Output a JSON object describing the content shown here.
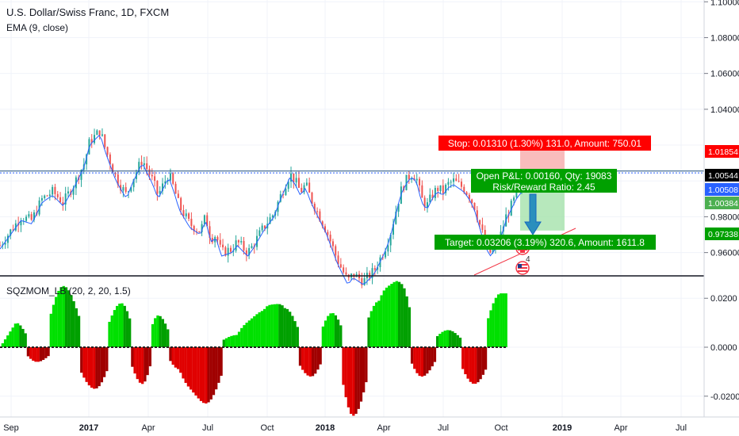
{
  "header": {
    "symbol_title": "U.S. Dollar/Swiss Franc, 1D, FXCM",
    "ema_label": "EMA (9, close)"
  },
  "position_tool": {
    "stop_label": "Stop: 0.01310 (1.30%) 131.0, Amount: 750.01",
    "open_pnl_label": "Open P&L: 0.00160, Qty: 19083",
    "risk_reward_label": "Risk/Reward Ratio: 2.45",
    "target_label": "Target: 0.03206 (3.19%) 320.6, Amount: 1611.8"
  },
  "markers": {
    "flag_label": "4",
    "flag_label_2": "5"
  },
  "colors": {
    "up": "#26a69a",
    "down": "#ef5350",
    "ema": "#2962ff",
    "stop_bg": "#ff0000",
    "target_bg": "#00a000",
    "mom_up": "#00e000",
    "mom_down": "#e00000"
  },
  "chart_data": [
    {
      "type": "candlestick",
      "title": "U.S. Dollar/Swiss Franc, 1D, FXCM",
      "x_ticks": [
        "Sep",
        "2017",
        "Apr",
        "Jul",
        "Oct",
        "2018",
        "Apr",
        "Jul",
        "Oct",
        "2019",
        "Apr",
        "Jul"
      ],
      "y_ticks": [
        "1.10000",
        "1.08000",
        "1.06000",
        "1.04000",
        "0.98000",
        "0.96000"
      ],
      "price_labels": [
        {
          "value": "1.01854",
          "color": "#ff0000"
        },
        {
          "value": "1.00544",
          "color": "#000000"
        },
        {
          "value": "1.00508",
          "color": "#2962ff"
        },
        {
          "value": "1.00384",
          "color": "#4caf50"
        },
        {
          "value": "0.97338",
          "color": "#00a000"
        }
      ],
      "ylim": [
        0.947,
        1.101
      ],
      "series": [
        {
          "name": "EMA (9, close)",
          "close_path": [
            [
              0,
              0.964
            ],
            [
              2,
              0.972
            ],
            [
              4,
              0.98
            ],
            [
              6,
              0.978
            ],
            [
              8,
              0.99
            ],
            [
              10,
              0.994
            ],
            [
              12,
              0.988
            ],
            [
              14,
              0.998
            ],
            [
              16,
              1.01
            ],
            [
              17,
              1.022
            ],
            [
              19,
              1.028
            ],
            [
              20,
              1.018
            ],
            [
              21,
              1.01
            ],
            [
              22,
              1.002
            ],
            [
              24,
              0.992
            ],
            [
              25,
              1.0
            ],
            [
              27,
              1.012
            ],
            [
              28,
              1.006
            ],
            [
              29,
              1.0
            ],
            [
              30,
              0.992
            ],
            [
              31,
              0.998
            ],
            [
              32,
              1.004
            ],
            [
              33,
              0.996
            ],
            [
              34,
              0.986
            ],
            [
              36,
              0.976
            ],
            [
              38,
              0.972
            ],
            [
              39,
              0.98
            ],
            [
              40,
              0.968
            ],
            [
              41,
              0.97
            ],
            [
              42,
              0.96
            ],
            [
              44,
              0.962
            ],
            [
              45,
              0.966
            ],
            [
              47,
              0.96
            ],
            [
              48,
              0.964
            ],
            [
              50,
              0.974
            ],
            [
              52,
              0.982
            ],
            [
              53,
              0.99
            ],
            [
              55,
              1.004
            ],
            [
              56,
              1.0
            ],
            [
              57,
              0.994
            ],
            [
              58,
              0.998
            ],
            [
              59,
              0.99
            ],
            [
              60,
              0.984
            ],
            [
              61,
              0.978
            ],
            [
              62,
              0.972
            ],
            [
              63,
              0.964
            ],
            [
              64,
              0.956
            ],
            [
              65,
              0.95
            ],
            [
              66,
              0.944
            ],
            [
              67,
              0.948
            ],
            [
              69,
              0.944
            ],
            [
              71,
              0.95
            ],
            [
              72,
              0.956
            ],
            [
              73,
              0.962
            ],
            [
              74,
              0.97
            ],
            [
              75,
              0.982
            ],
            [
              76,
              0.994
            ],
            [
              77,
              1.0
            ],
            [
              78,
              1.004
            ],
            [
              79,
              1.002
            ],
            [
              80,
              0.99
            ],
            [
              81,
              0.986
            ],
            [
              82,
              0.992
            ],
            [
              83,
              0.996
            ],
            [
              84,
              0.994
            ],
            [
              85,
              0.998
            ],
            [
              86,
              1.0
            ],
            [
              87,
              0.998
            ],
            [
              88,
              0.996
            ],
            [
              89,
              0.992
            ],
            [
              90,
              0.986
            ],
            [
              91,
              0.976
            ],
            [
              92,
              0.966
            ],
            [
              93,
              0.96
            ],
            [
              94,
              0.964
            ],
            [
              95,
              0.97
            ],
            [
              96,
              0.98
            ],
            [
              97,
              0.986
            ],
            [
              98,
              0.992
            ],
            [
              99,
              0.996
            ]
          ]
        }
      ],
      "trendlines": [
        {
          "name": "resistance",
          "value": 1.0055
        },
        {
          "name": "entry",
          "value": 1.0045
        }
      ],
      "position": {
        "entry": 1.0044,
        "stop": 1.0175,
        "target": 0.9723
      }
    },
    {
      "type": "histogram",
      "title": "SQZMOM_LB (20, 2, 20, 1.5)",
      "y_ticks": [
        "0.0200",
        "0.0000",
        "-0.0200"
      ],
      "ylim": [
        -0.0285,
        0.0285
      ],
      "peaks": [
        {
          "x": 3,
          "value": 0.01
        },
        {
          "x": 7,
          "value": -0.006
        },
        {
          "x": 12,
          "value": 0.025
        },
        {
          "x": 18,
          "value": -0.017
        },
        {
          "x": 23,
          "value": 0.018
        },
        {
          "x": 27,
          "value": -0.015
        },
        {
          "x": 30,
          "value": 0.013
        },
        {
          "x": 34,
          "value": -0.009
        },
        {
          "x": 39,
          "value": -0.023
        },
        {
          "x": 45,
          "value": 0.005
        },
        {
          "x": 50,
          "value": 0.015
        },
        {
          "x": 54,
          "value": 0.016
        },
        {
          "x": 59,
          "value": -0.012
        },
        {
          "x": 63,
          "value": 0.014
        },
        {
          "x": 67,
          "value": -0.028
        },
        {
          "x": 72,
          "value": 0.019
        },
        {
          "x": 76,
          "value": 0.026
        },
        {
          "x": 80,
          "value": -0.012
        },
        {
          "x": 85,
          "value": 0.007
        },
        {
          "x": 90,
          "value": -0.015
        },
        {
          "x": 95,
          "value": 0.022
        }
      ]
    }
  ]
}
